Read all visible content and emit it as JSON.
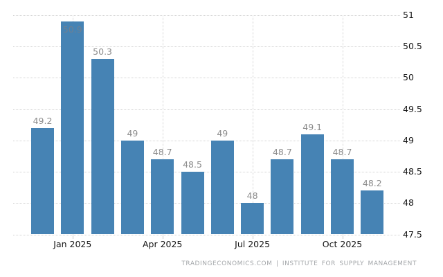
{
  "chart_data": {
    "type": "bar",
    "title": "",
    "values": [
      49.2,
      50.9,
      50.3,
      49,
      48.7,
      48.5,
      49,
      48,
      48.7,
      49.1,
      48.7,
      48.2
    ],
    "bar_labels": [
      "49.2",
      "50.9",
      "50.3",
      "49",
      "48.7",
      "48.5",
      "49",
      "48",
      "48.7",
      "49.1",
      "48.7",
      "48.2"
    ],
    "x_ticks": [
      {
        "label": "Jan 2025",
        "bar_index": 1
      },
      {
        "label": "Apr 2025",
        "bar_index": 4
      },
      {
        "label": "Jul 2025",
        "bar_index": 7
      },
      {
        "label": "Oct 2025",
        "bar_index": 10
      }
    ],
    "y_ticks": [
      {
        "value": 47.5,
        "label": "47.5"
      },
      {
        "value": 48,
        "label": "48"
      },
      {
        "value": 48.5,
        "label": "48.5"
      },
      {
        "value": 49,
        "label": "49"
      },
      {
        "value": 49.5,
        "label": "49.5"
      },
      {
        "value": 50,
        "label": "50"
      },
      {
        "value": 50.5,
        "label": "50.5"
      },
      {
        "value": 51,
        "label": "51"
      }
    ],
    "ylim": [
      47.5,
      51
    ],
    "grid": true,
    "legend": "none",
    "colors": {
      "bar": "#4683b4",
      "value_label": "#8c8c8c",
      "axis_label": "#141414",
      "gridline": "#d2d2d2",
      "tick_mark": "#c9c9c9",
      "footer": "#a4a7aa",
      "background": "#ffffff"
    }
  },
  "footer": {
    "credit": "TRADINGECONOMICS.COM | INSTITUTE FOR SUPPLY MANAGEMENT"
  }
}
